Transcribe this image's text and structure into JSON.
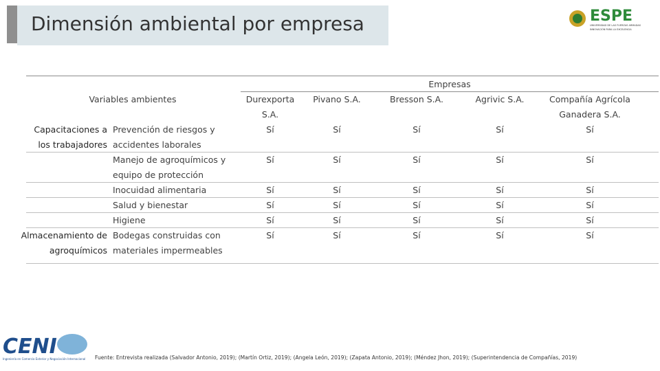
{
  "header": {
    "title": "Dimensión ambiental por empresa",
    "logo": {
      "name": "ESPE",
      "line1": "UNIVERSIDAD DE LAS FUERZAS ARMADAS",
      "line2": "INNOVACIÓN PARA LA EXCELENCIA"
    }
  },
  "table": {
    "variables_header": "Variables ambientes",
    "companies_header": "Empresas",
    "companies": [
      "Durexporta S.A.",
      "Pivano S.A.",
      "Bresson S.A.",
      "Agrivic S.A.",
      "Compañía Agrícola Ganadera S.A."
    ],
    "rows": [
      {
        "group": "Capacitaciones a los trabajadores",
        "variable": "Prevención de riesgos y accidentes laborales",
        "cells": [
          "Sí",
          "Sí",
          "Sí",
          "Sí",
          "Sí"
        ]
      },
      {
        "variable": "Manejo de agroquímicos y equipo de protección",
        "cells": [
          "Sí",
          "Sí",
          "Sí",
          "Sí",
          "Sí"
        ]
      },
      {
        "variable": "Inocuidad alimentaria",
        "cells": [
          "Sí",
          "Sí",
          "Sí",
          "Sí",
          "Sí"
        ]
      },
      {
        "variable": "Salud y bienestar",
        "cells": [
          "Sí",
          "Sí",
          "Sí",
          "Sí",
          "Sí"
        ]
      },
      {
        "variable": "Higiene",
        "cells": [
          "Sí",
          "Sí",
          "Sí",
          "Sí",
          "Sí"
        ]
      },
      {
        "group": "Almacenamiento de agroquímicos",
        "variable": "Bodegas construidas con materiales impermeables",
        "cells": [
          "Sí",
          "Sí",
          "Sí",
          "Sí",
          "Sí"
        ]
      }
    ]
  },
  "footer": {
    "source": "Fuente: Entrevista realizada (Salvador Antonio, 2019); (Martín Ortiz, 2019); (Angela León, 2019); (Zapata Antonio, 2019); (Méndez Jhon, 2019); (Superintendencia de Compañías, 2019)",
    "logo": {
      "name": "CENI",
      "subtitle": "Ingeniería en Comercio Exterior y Negociación Internacional"
    }
  }
}
